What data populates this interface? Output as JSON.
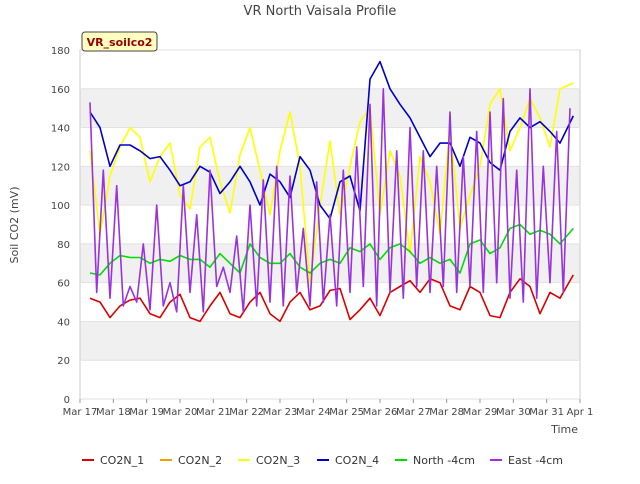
{
  "chart_data": {
    "type": "line",
    "title": "VR North Vaisala Profile",
    "site_label": "VR_soilco2",
    "xlabel": "Time",
    "ylabel": "Soil CO2 (mV)",
    "ylim": [
      0,
      180
    ],
    "yticks": [
      0,
      20,
      40,
      60,
      80,
      100,
      120,
      140,
      160,
      180
    ],
    "xlim": [
      0,
      15
    ],
    "xticks": [
      0,
      1,
      2,
      3,
      4,
      5,
      6,
      7,
      8,
      9,
      10,
      11,
      12,
      13,
      14,
      15
    ],
    "xtick_labels": [
      "Mar 17",
      "Mar 18",
      "Mar 19",
      "Mar 20",
      "Mar 21",
      "Mar 22",
      "Mar 23",
      "Mar 24",
      "Mar 25",
      "Mar 26",
      "Mar 27",
      "Mar 28",
      "Mar 29",
      "Mar 30",
      "Mar 31",
      "Apr 1"
    ],
    "x_units": "days since Mar 17",
    "grid": "horizontal bands",
    "legend_position": "bottom",
    "series": [
      {
        "name": "CO2N_1",
        "color": "#dd0000",
        "x": [
          0.3,
          0.6,
          0.9,
          1.2,
          1.5,
          1.8,
          2.1,
          2.4,
          2.7,
          3.0,
          3.3,
          3.6,
          3.9,
          4.2,
          4.5,
          4.8,
          5.1,
          5.4,
          5.7,
          6.0,
          6.3,
          6.6,
          6.9,
          7.2,
          7.5,
          7.8,
          8.1,
          8.4,
          8.7,
          9.0,
          9.3,
          9.6,
          9.9,
          10.2,
          10.5,
          10.8,
          11.1,
          11.4,
          11.7,
          12.0,
          12.3,
          12.6,
          12.9,
          13.2,
          13.5,
          13.8,
          14.1,
          14.4,
          14.8
        ],
        "y": [
          52,
          50,
          42,
          48,
          51,
          52,
          44,
          42,
          50,
          54,
          42,
          40,
          48,
          55,
          44,
          42,
          50,
          55,
          44,
          40,
          50,
          55,
          46,
          48,
          56,
          57,
          41,
          46,
          52,
          43,
          55,
          58,
          61,
          55,
          62,
          60,
          48,
          46,
          58,
          55,
          43,
          42,
          55,
          62,
          58,
          44,
          55,
          52,
          64
        ]
      },
      {
        "name": "CO2N_2",
        "color": "#f0a000",
        "x": [],
        "y": []
      },
      {
        "name": "CO2N_3",
        "color": "#ffff00",
        "x": [
          0.3,
          0.6,
          0.9,
          1.2,
          1.5,
          1.8,
          2.1,
          2.4,
          2.7,
          3.0,
          3.3,
          3.6,
          3.9,
          4.2,
          4.5,
          4.8,
          5.1,
          5.4,
          5.7,
          6.0,
          6.3,
          6.6,
          6.9,
          7.2,
          7.5,
          7.8,
          8.1,
          8.4,
          8.7,
          9.0,
          9.3,
          9.6,
          9.9,
          10.2,
          10.5,
          10.8,
          11.1,
          11.4,
          11.7,
          12.0,
          12.3,
          12.6,
          12.9,
          13.2,
          13.5,
          13.8,
          14.1,
          14.4,
          14.8
        ],
        "y": [
          128,
          85,
          115,
          130,
          140,
          135,
          112,
          125,
          132,
          105,
          98,
          130,
          135,
          112,
          96,
          126,
          140,
          118,
          95,
          128,
          148,
          120,
          60,
          100,
          133,
          95,
          120,
          143,
          150,
          95,
          128,
          115,
          75,
          125,
          112,
          85,
          140,
          88,
          105,
          120,
          152,
          160,
          128,
          140,
          155,
          145,
          130,
          160,
          163
        ]
      },
      {
        "name": "CO2N_4",
        "color": "#0000cc",
        "x": [
          0.3,
          0.6,
          0.9,
          1.2,
          1.5,
          1.8,
          2.1,
          2.4,
          2.7,
          3.0,
          3.3,
          3.6,
          3.9,
          4.2,
          4.5,
          4.8,
          5.1,
          5.4,
          5.7,
          6.0,
          6.3,
          6.6,
          6.9,
          7.2,
          7.5,
          7.8,
          8.1,
          8.4,
          8.7,
          9.0,
          9.3,
          9.6,
          9.9,
          10.2,
          10.5,
          10.8,
          11.1,
          11.4,
          11.7,
          12.0,
          12.3,
          12.6,
          12.9,
          13.2,
          13.5,
          13.8,
          14.1,
          14.4,
          14.8
        ],
        "y": [
          148,
          140,
          120,
          131,
          131,
          128,
          124,
          125,
          118,
          110,
          112,
          120,
          117,
          106,
          112,
          120,
          112,
          100,
          116,
          112,
          104,
          125,
          118,
          100,
          93,
          112,
          115,
          97,
          165,
          174,
          160,
          152,
          145,
          135,
          125,
          132,
          132,
          120,
          135,
          132,
          122,
          118,
          138,
          145,
          140,
          143,
          138,
          132,
          146
        ]
      },
      {
        "name": "North -4cm",
        "color": "#00dd00",
        "x": [
          0.3,
          0.6,
          0.9,
          1.2,
          1.5,
          1.8,
          2.1,
          2.4,
          2.7,
          3.0,
          3.3,
          3.6,
          3.9,
          4.2,
          4.5,
          4.8,
          5.1,
          5.4,
          5.7,
          6.0,
          6.3,
          6.6,
          6.9,
          7.2,
          7.5,
          7.8,
          8.1,
          8.4,
          8.7,
          9.0,
          9.3,
          9.6,
          9.9,
          10.2,
          10.5,
          10.8,
          11.1,
          11.4,
          11.7,
          12.0,
          12.3,
          12.6,
          12.9,
          13.2,
          13.5,
          13.8,
          14.1,
          14.4,
          14.8
        ],
        "y": [
          65,
          64,
          70,
          74,
          73,
          73,
          70,
          72,
          71,
          74,
          72,
          72,
          68,
          75,
          70,
          65,
          80,
          73,
          70,
          70,
          75,
          68,
          65,
          70,
          72,
          70,
          78,
          76,
          80,
          72,
          78,
          80,
          76,
          70,
          73,
          70,
          72,
          65,
          80,
          82,
          75,
          78,
          88,
          90,
          85,
          87,
          85,
          80,
          88
        ]
      },
      {
        "name": "East -4cm",
        "color": "#9933dd",
        "x": [
          0.3,
          0.5,
          0.7,
          0.9,
          1.1,
          1.3,
          1.5,
          1.7,
          1.9,
          2.1,
          2.3,
          2.5,
          2.7,
          2.9,
          3.1,
          3.3,
          3.5,
          3.7,
          3.9,
          4.1,
          4.3,
          4.5,
          4.7,
          4.9,
          5.1,
          5.3,
          5.5,
          5.7,
          5.9,
          6.1,
          6.3,
          6.5,
          6.7,
          6.9,
          7.1,
          7.3,
          7.5,
          7.7,
          7.9,
          8.1,
          8.3,
          8.5,
          8.7,
          8.9,
          9.1,
          9.3,
          9.5,
          9.7,
          9.9,
          10.1,
          10.3,
          10.5,
          10.7,
          10.9,
          11.1,
          11.3,
          11.5,
          11.7,
          11.9,
          12.1,
          12.3,
          12.5,
          12.7,
          12.9,
          13.1,
          13.3,
          13.5,
          13.7,
          13.9,
          14.1,
          14.3,
          14.5,
          14.7
        ],
        "y": [
          153,
          55,
          118,
          52,
          110,
          48,
          58,
          50,
          80,
          46,
          100,
          48,
          60,
          45,
          110,
          55,
          95,
          45,
          118,
          58,
          68,
          55,
          84,
          45,
          100,
          48,
          113,
          50,
          120,
          48,
          115,
          55,
          88,
          48,
          112,
          50,
          95,
          48,
          118,
          55,
          130,
          58,
          152,
          48,
          160,
          55,
          128,
          52,
          140,
          58,
          128,
          55,
          120,
          58,
          148,
          55,
          125,
          58,
          138,
          55,
          148,
          60,
          155,
          52,
          118,
          50,
          160,
          52,
          120,
          60,
          138,
          55,
          150
        ]
      }
    ]
  }
}
